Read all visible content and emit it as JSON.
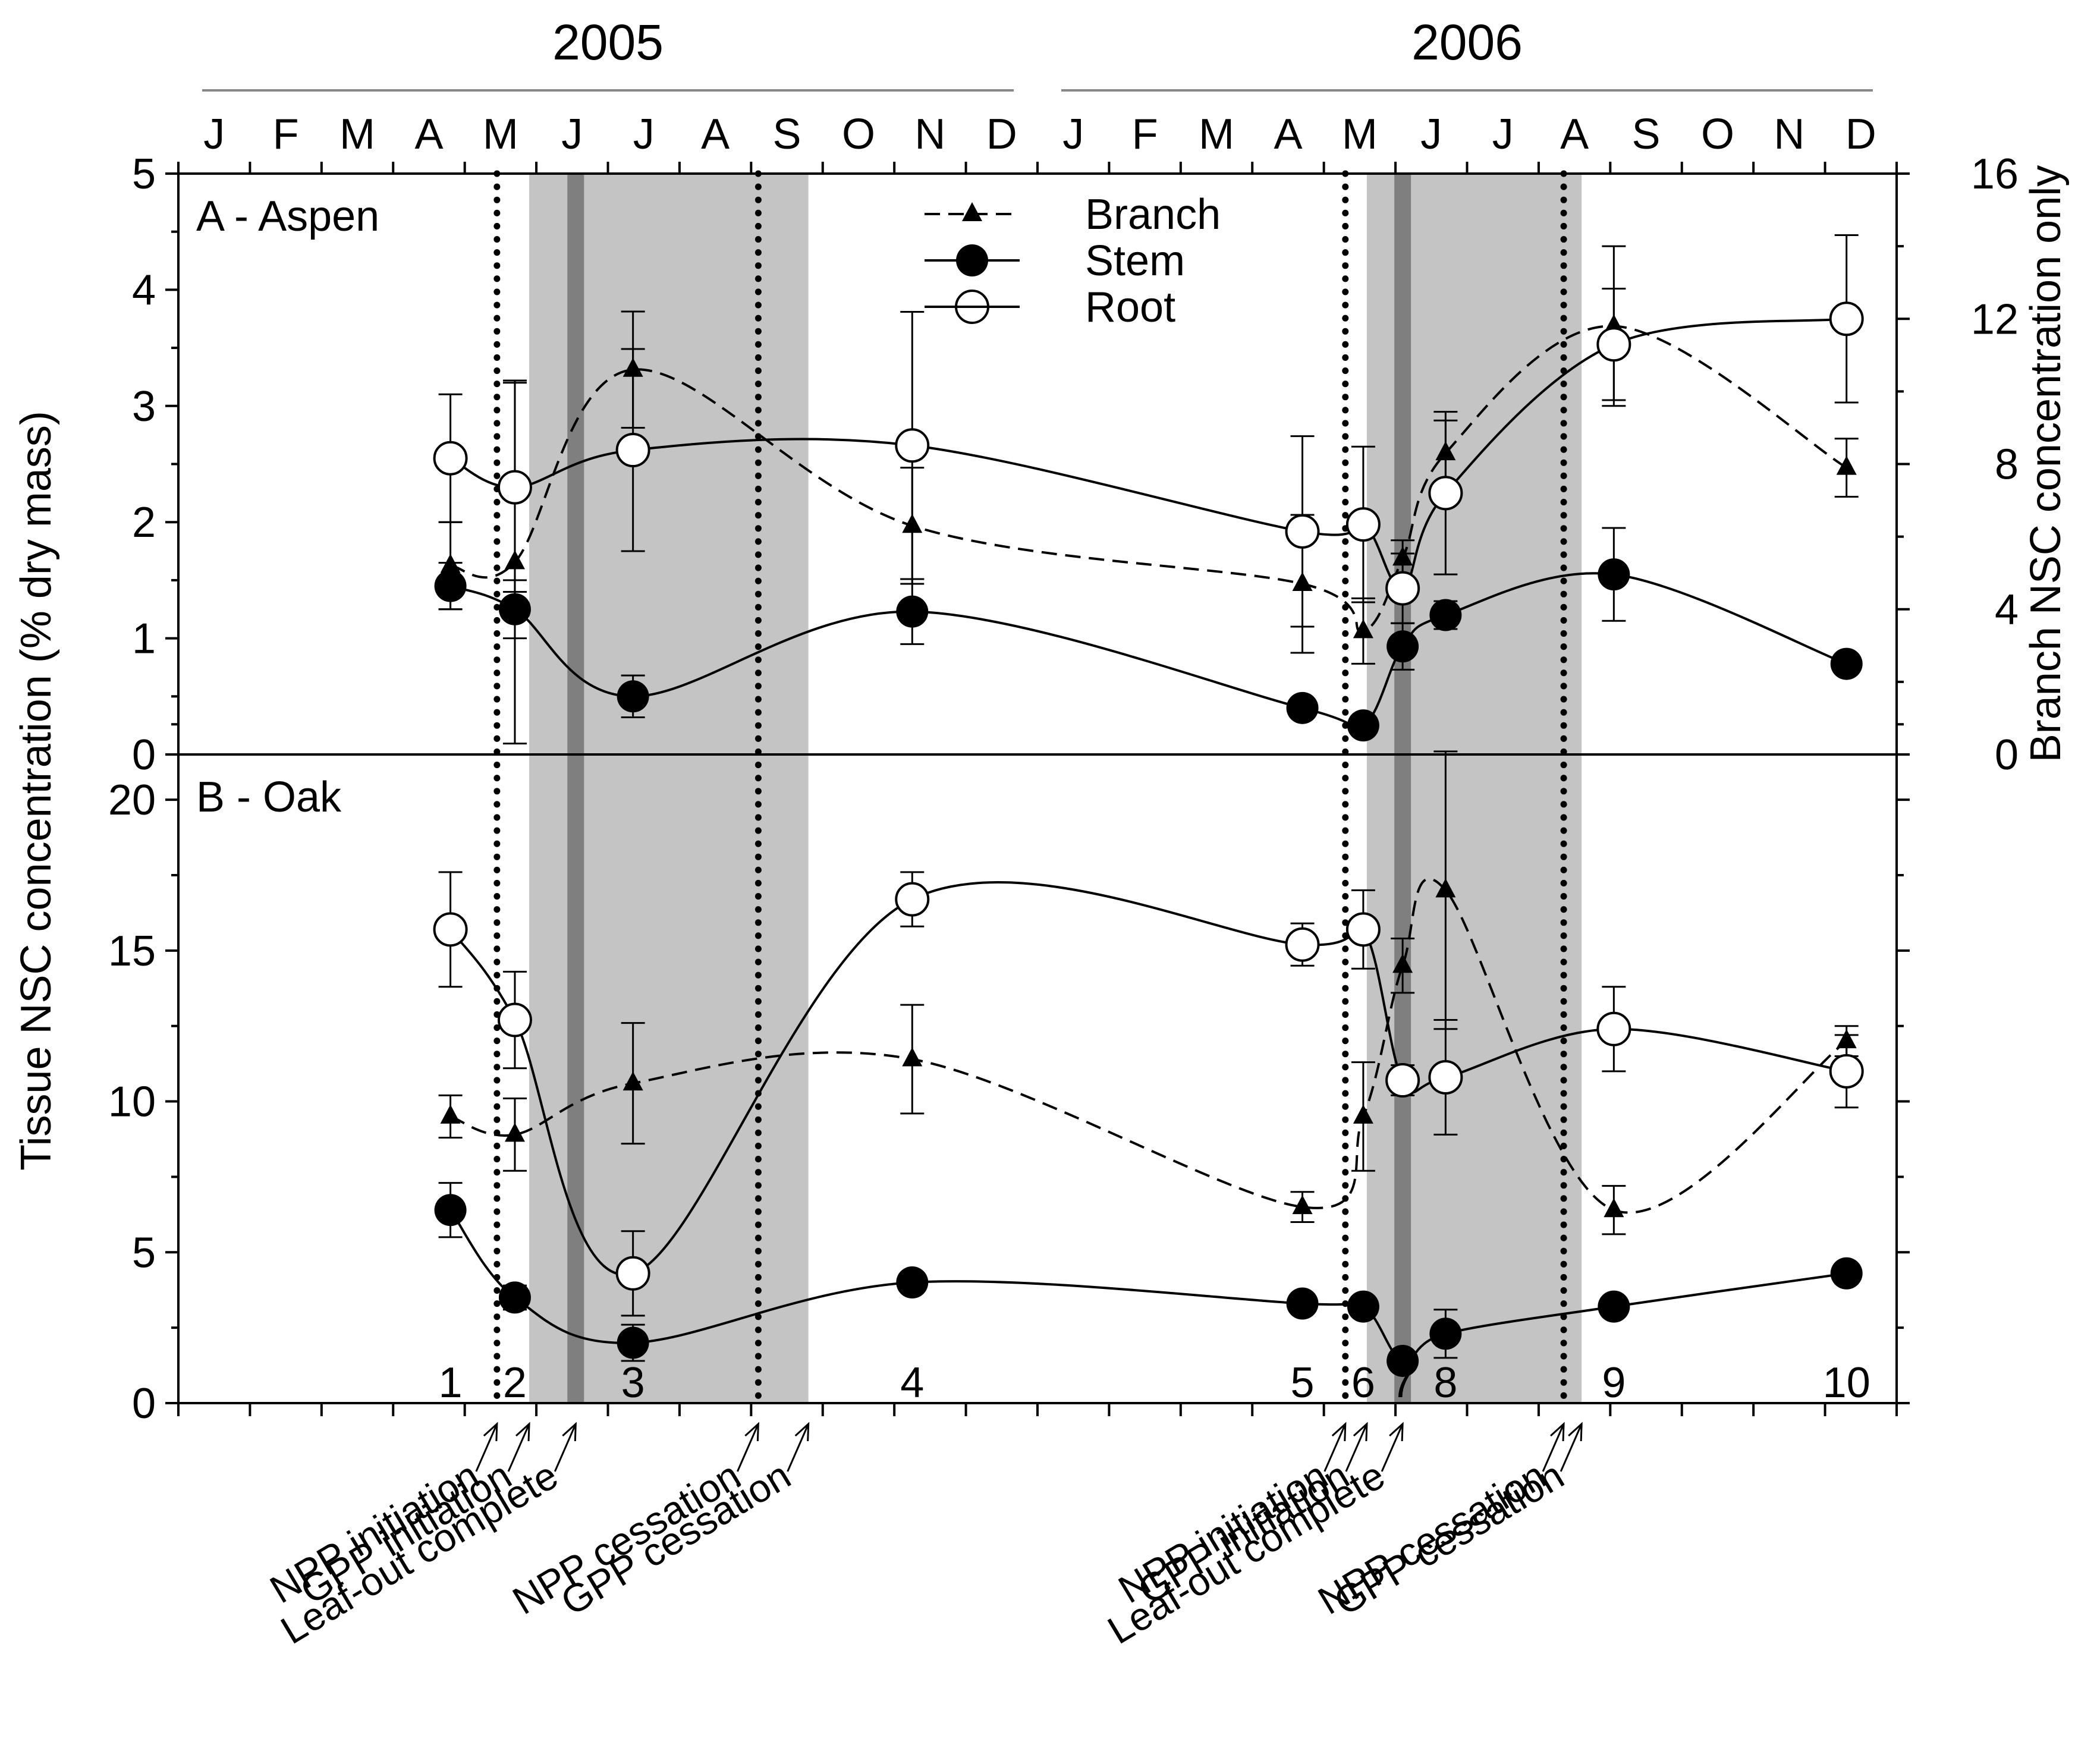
{
  "chart_data": {
    "type": "line",
    "x_unit": "month",
    "years": [
      {
        "label": "2005",
        "start": 0,
        "end": 12
      },
      {
        "label": "2006",
        "start": 12,
        "end": 24
      }
    ],
    "months": [
      "J",
      "F",
      "M",
      "A",
      "M",
      "J",
      "J",
      "A",
      "S",
      "O",
      "N",
      "D",
      "J",
      "F",
      "M",
      "A",
      "M",
      "J",
      "J",
      "A",
      "S",
      "O",
      "N",
      "D"
    ],
    "y_left_label": "Tissue NSC concentration (% dry mass)",
    "y_right_label": "Branch NSC concentration only",
    "shaded_periods": [
      {
        "start": 4.9,
        "end": 8.8
      },
      {
        "start": 16.6,
        "end": 19.6
      }
    ],
    "leafout_lines": [
      5.55,
      17.1
    ],
    "dotted_lines": [
      4.45,
      8.1,
      16.3,
      19.35
    ],
    "sampling_points": [
      {
        "label": "1",
        "x": 3.8
      },
      {
        "label": "2",
        "x": 4.7
      },
      {
        "label": "3",
        "x": 6.35
      },
      {
        "label": "4",
        "x": 10.25
      },
      {
        "label": "5",
        "x": 15.7
      },
      {
        "label": "6",
        "x": 16.55
      },
      {
        "label": "7",
        "x": 17.1
      },
      {
        "label": "8",
        "x": 17.7
      },
      {
        "label": "9",
        "x": 20.05
      },
      {
        "label": "10",
        "x": 23.3
      }
    ],
    "event_labels": [
      {
        "text": "NPP initiation",
        "x": 4.45
      },
      {
        "text": "GPP initiation",
        "x": 4.9
      },
      {
        "text": "Leaf-out complete",
        "x": 5.55
      },
      {
        "text": "NPP cessation",
        "x": 8.1
      },
      {
        "text": "GPP cessation",
        "x": 8.8
      },
      {
        "text": "NPP initiation",
        "x": 16.3
      },
      {
        "text": "GPP initiation",
        "x": 16.6
      },
      {
        "text": "Leaf-out complete",
        "x": 17.1
      },
      {
        "text": "NPP cessation",
        "x": 19.35
      },
      {
        "text": "GPP cessation",
        "x": 19.6
      }
    ],
    "legend": [
      {
        "name": "Branch",
        "marker": "triangle",
        "dash": true
      },
      {
        "name": "Stem",
        "marker": "filled-circle",
        "dash": false
      },
      {
        "name": "Root",
        "marker": "open-circle",
        "dash": false
      }
    ],
    "panels": [
      {
        "label": "A - Aspen",
        "ylim": [
          0,
          5
        ],
        "yticks": [
          "0",
          "1",
          "2",
          "3",
          "4",
          "5"
        ],
        "y2lim": [
          0,
          16
        ],
        "y2ticks": [
          "0",
          "4",
          "8",
          "12",
          "16"
        ],
        "series": [
          {
            "name": "Branch",
            "axis": "right",
            "marker": "triangle",
            "dash": true,
            "x": [
              3.8,
              4.7,
              6.35,
              10.25,
              15.7,
              16.55,
              17.1,
              17.7,
              20.05,
              23.3
            ],
            "y": [
              5.2,
              5.3,
              10.6,
              6.3,
              4.7,
              3.4,
              5.4,
              8.3,
              11.8,
              7.9
            ],
            "err": [
              1.2,
              5.0,
              1.6,
              1.6,
              1.9,
              0.9,
              0.5,
              0.9,
              2.2,
              0.8
            ]
          },
          {
            "name": "Stem",
            "axis": "left",
            "marker": "filled-circle",
            "dash": false,
            "x": [
              3.8,
              4.7,
              6.35,
              10.25,
              15.7,
              16.55,
              17.1,
              17.7,
              20.05,
              23.3
            ],
            "y": [
              1.45,
              1.25,
              0.5,
              1.23,
              0.4,
              0.25,
              0.93,
              1.2,
              1.55,
              0.78
            ],
            "err": [
              0.2,
              0.25,
              0.18,
              0.28,
              0.05,
              0.05,
              0.2,
              0.12,
              0.4,
              0.07
            ]
          },
          {
            "name": "Root",
            "axis": "left",
            "marker": "open-circle",
            "dash": false,
            "x": [
              3.8,
              4.7,
              6.35,
              10.25,
              15.7,
              16.55,
              17.1,
              17.7,
              20.05,
              23.3
            ],
            "y": [
              2.55,
              2.3,
              2.62,
              2.66,
              1.92,
              1.98,
              1.43,
              2.25,
              3.53,
              3.75
            ],
            "err": [
              0.55,
              0.9,
              0.87,
              1.15,
              0.82,
              0.67,
              0.3,
              0.7,
              0.48,
              0.72
            ]
          }
        ]
      },
      {
        "label": "B - Oak",
        "ylim": [
          0,
          21.5
        ],
        "yticks": [
          "0",
          "5",
          "10",
          "15",
          "20"
        ],
        "series": [
          {
            "name": "Branch",
            "axis": "left",
            "marker": "triangle",
            "dash": true,
            "x": [
              3.8,
              4.7,
              6.35,
              10.25,
              15.7,
              16.55,
              17.1,
              17.7,
              20.05,
              23.3
            ],
            "y": [
              9.5,
              8.9,
              10.6,
              11.4,
              6.5,
              9.5,
              14.5,
              17.0,
              6.4,
              12.0
            ],
            "err": [
              0.7,
              1.2,
              2.0,
              1.8,
              0.5,
              1.8,
              0.9,
              4.6,
              0.8,
              0.5
            ]
          },
          {
            "name": "Stem",
            "axis": "left",
            "marker": "filled-circle",
            "dash": false,
            "x": [
              3.8,
              4.7,
              6.35,
              10.25,
              15.7,
              16.55,
              17.1,
              17.7,
              20.05,
              23.3
            ],
            "y": [
              6.4,
              3.5,
              2.0,
              4.0,
              3.3,
              3.2,
              1.4,
              2.3,
              3.2,
              4.3
            ],
            "err": [
              0.9,
              0.4,
              0.6,
              0.3,
              0.3,
              0.3,
              0.3,
              0.8,
              0.3,
              0.3
            ]
          },
          {
            "name": "Root",
            "axis": "left",
            "marker": "open-circle",
            "dash": false,
            "x": [
              3.8,
              4.7,
              6.35,
              10.25,
              15.7,
              16.55,
              17.1,
              17.7,
              20.05,
              23.3
            ],
            "y": [
              15.7,
              12.7,
              4.3,
              16.7,
              15.2,
              15.7,
              10.7,
              10.8,
              12.4,
              11.0
            ],
            "err": [
              1.9,
              1.6,
              1.4,
              0.9,
              0.7,
              1.3,
              0.5,
              1.9,
              1.4,
              1.2
            ]
          }
        ]
      }
    ]
  }
}
